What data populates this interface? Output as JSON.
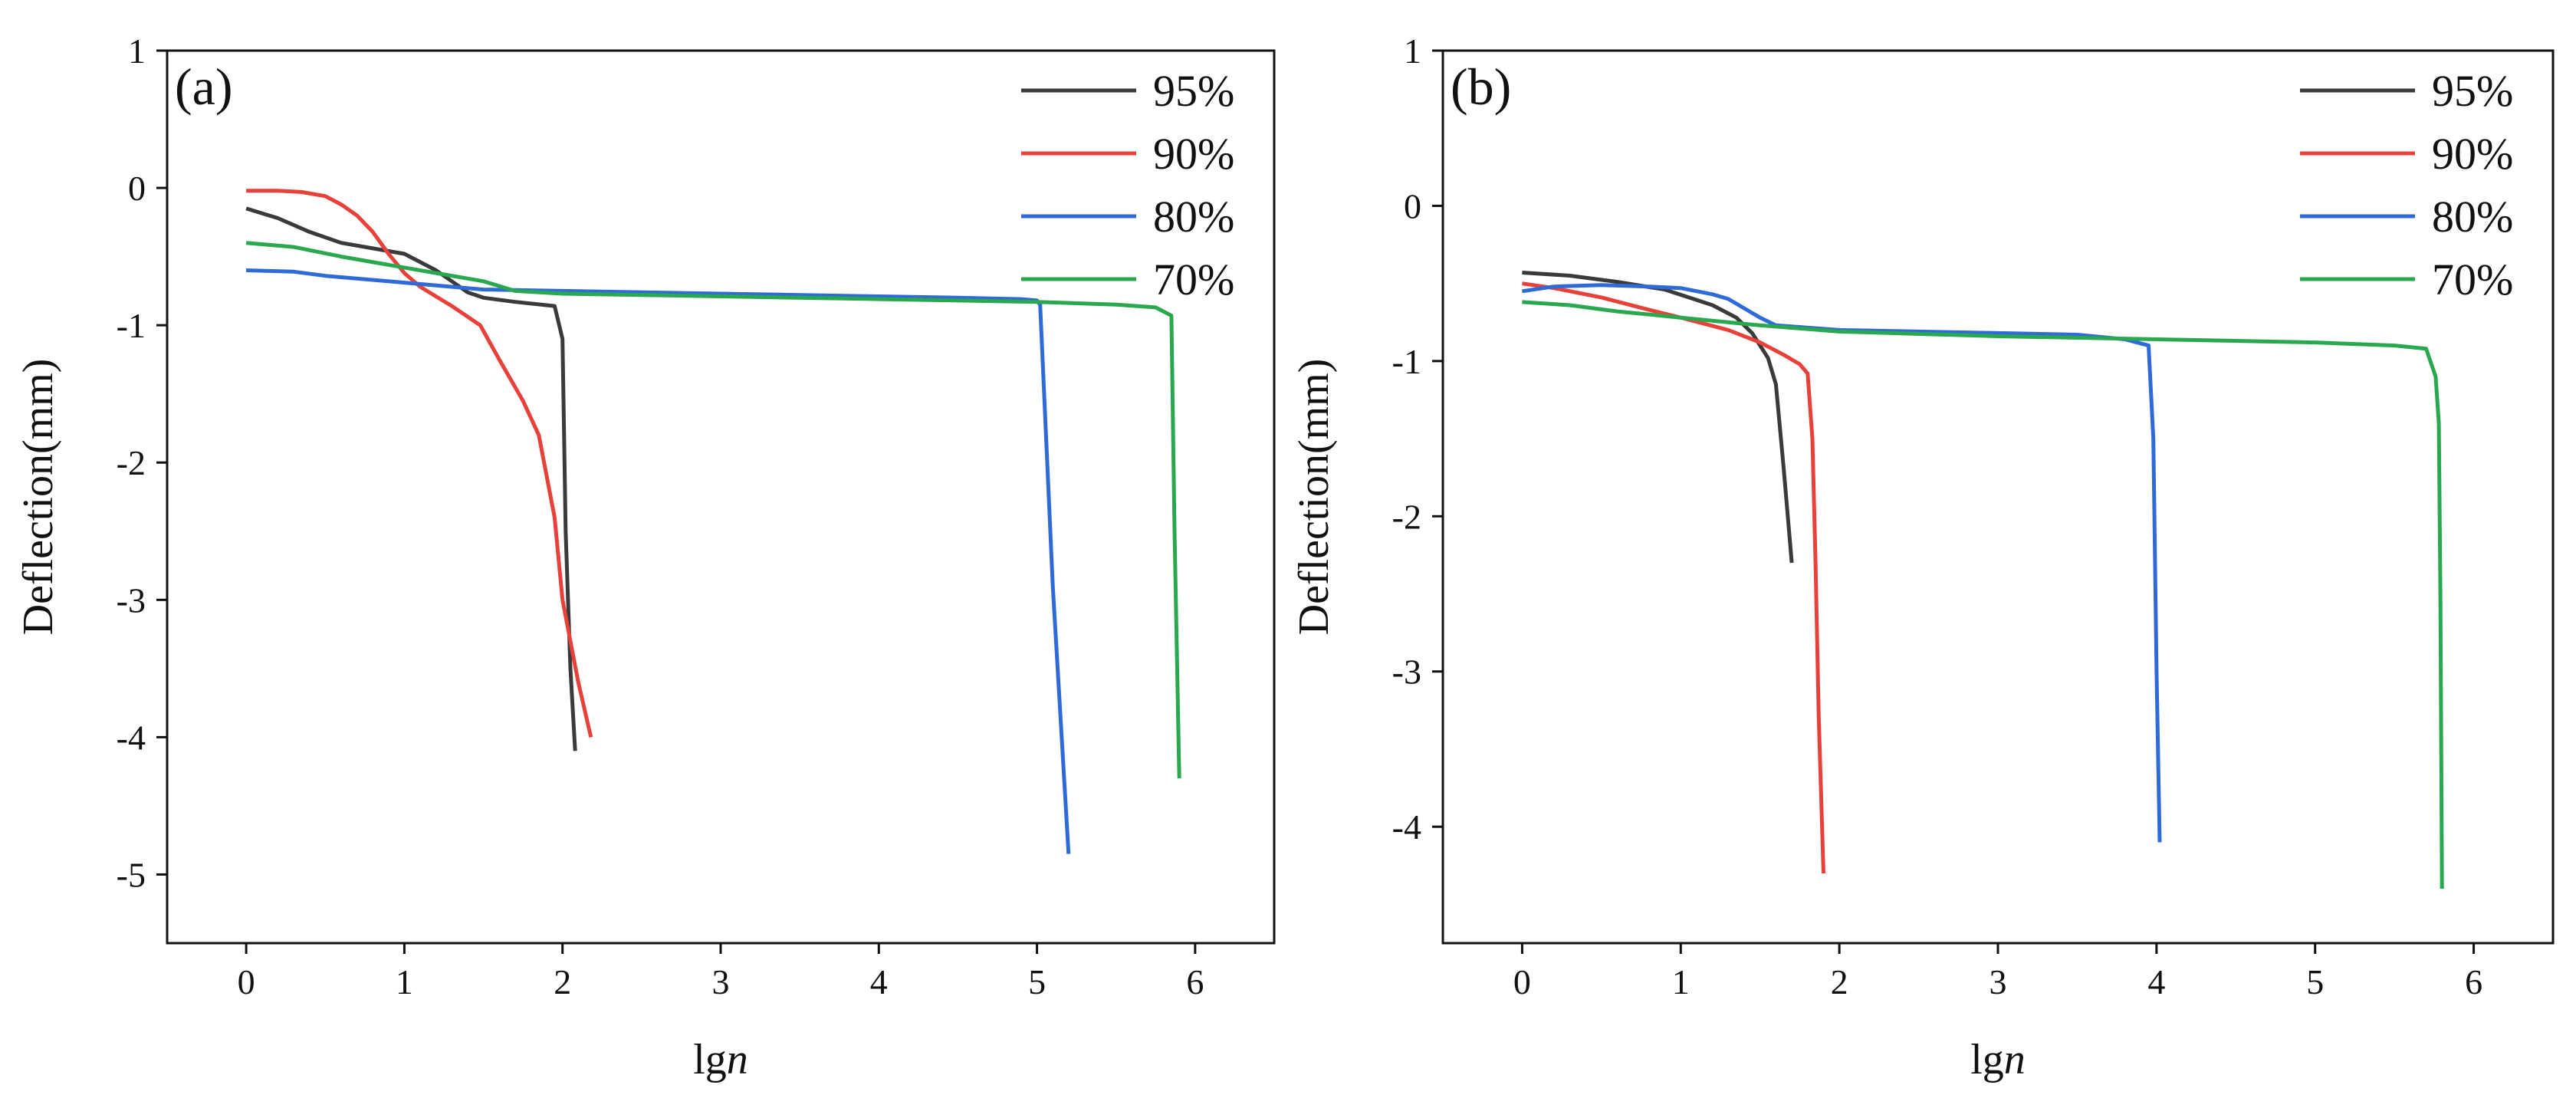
{
  "chart_data": [
    {
      "type": "line",
      "panel_label": "(a)",
      "xlabel_main": "lg",
      "xlabel_italic": "n",
      "ylabel": "Deflection(mm)",
      "xlim": [
        -0.5,
        6.5
      ],
      "ylim": [
        -5.5,
        1
      ],
      "xticks": [
        "0",
        "1",
        "2",
        "3",
        "4",
        "5",
        "6"
      ],
      "yticks": [
        "1",
        "0",
        "-1",
        "-2",
        "-3",
        "-4",
        "-5"
      ],
      "legend_position": "top-right",
      "series": [
        {
          "name": "95%",
          "color": "#3a3a3a",
          "points": [
            [
              0,
              -0.15
            ],
            [
              0.2,
              -0.22
            ],
            [
              0.4,
              -0.32
            ],
            [
              0.6,
              -0.4
            ],
            [
              0.8,
              -0.44
            ],
            [
              1.0,
              -0.48
            ],
            [
              1.2,
              -0.6
            ],
            [
              1.4,
              -0.76
            ],
            [
              1.5,
              -0.8
            ],
            [
              1.7,
              -0.83
            ],
            [
              1.95,
              -0.86
            ],
            [
              2.0,
              -1.1
            ],
            [
              2.02,
              -2.5
            ],
            [
              2.05,
              -3.5
            ],
            [
              2.08,
              -4.1
            ]
          ]
        },
        {
          "name": "90%",
          "color": "#e8413a",
          "points": [
            [
              0,
              -0.02
            ],
            [
              0.2,
              -0.02
            ],
            [
              0.35,
              -0.03
            ],
            [
              0.5,
              -0.06
            ],
            [
              0.6,
              -0.12
            ],
            [
              0.7,
              -0.2
            ],
            [
              0.8,
              -0.32
            ],
            [
              0.9,
              -0.48
            ],
            [
              1.0,
              -0.62
            ],
            [
              1.1,
              -0.72
            ],
            [
              1.3,
              -0.86
            ],
            [
              1.48,
              -1.0
            ],
            [
              1.6,
              -1.25
            ],
            [
              1.75,
              -1.55
            ],
            [
              1.85,
              -1.8
            ],
            [
              1.95,
              -2.4
            ],
            [
              2.0,
              -3.0
            ],
            [
              2.1,
              -3.6
            ],
            [
              2.18,
              -4.0
            ]
          ]
        },
        {
          "name": "80%",
          "color": "#2f6ad9",
          "points": [
            [
              0,
              -0.6
            ],
            [
              0.3,
              -0.61
            ],
            [
              0.5,
              -0.64
            ],
            [
              1.0,
              -0.69
            ],
            [
              1.5,
              -0.74
            ],
            [
              2.0,
              -0.75
            ],
            [
              3.0,
              -0.77
            ],
            [
              4.0,
              -0.79
            ],
            [
              4.5,
              -0.8
            ],
            [
              4.9,
              -0.81
            ],
            [
              5.0,
              -0.82
            ],
            [
              5.02,
              -0.85
            ],
            [
              5.1,
              -2.9
            ],
            [
              5.2,
              -4.85
            ]
          ]
        },
        {
          "name": "70%",
          "color": "#2aa84f",
          "points": [
            [
              0,
              -0.4
            ],
            [
              0.3,
              -0.43
            ],
            [
              0.6,
              -0.5
            ],
            [
              0.9,
              -0.56
            ],
            [
              1.2,
              -0.62
            ],
            [
              1.5,
              -0.68
            ],
            [
              1.7,
              -0.75
            ],
            [
              2.0,
              -0.77
            ],
            [
              3.0,
              -0.79
            ],
            [
              4.0,
              -0.81
            ],
            [
              5.0,
              -0.83
            ],
            [
              5.5,
              -0.85
            ],
            [
              5.75,
              -0.87
            ],
            [
              5.85,
              -0.93
            ],
            [
              5.87,
              -2.5
            ],
            [
              5.9,
              -4.3
            ]
          ]
        }
      ]
    },
    {
      "type": "line",
      "panel_label": "(b)",
      "xlabel_main": "lg",
      "xlabel_italic": "n",
      "ylabel": "Deflection(mm)",
      "xlim": [
        -0.5,
        6.5
      ],
      "ylim": [
        -4.75,
        1
      ],
      "xticks": [
        "0",
        "1",
        "2",
        "3",
        "4",
        "5",
        "6"
      ],
      "yticks": [
        "1",
        "0",
        "-1",
        "-2",
        "-3",
        "-4"
      ],
      "legend_position": "top-right",
      "series": [
        {
          "name": "95%",
          "color": "#3a3a3a",
          "points": [
            [
              0,
              -0.43
            ],
            [
              0.3,
              -0.45
            ],
            [
              0.6,
              -0.49
            ],
            [
              0.9,
              -0.54
            ],
            [
              1.2,
              -0.64
            ],
            [
              1.35,
              -0.72
            ],
            [
              1.45,
              -0.82
            ],
            [
              1.55,
              -0.98
            ],
            [
              1.6,
              -1.15
            ],
            [
              1.65,
              -1.7
            ],
            [
              1.7,
              -2.3
            ]
          ]
        },
        {
          "name": "90%",
          "color": "#e8413a",
          "points": [
            [
              0,
              -0.5
            ],
            [
              0.2,
              -0.53
            ],
            [
              0.5,
              -0.59
            ],
            [
              0.8,
              -0.67
            ],
            [
              1.0,
              -0.72
            ],
            [
              1.3,
              -0.8
            ],
            [
              1.5,
              -0.88
            ],
            [
              1.65,
              -0.96
            ],
            [
              1.75,
              -1.02
            ],
            [
              1.8,
              -1.08
            ],
            [
              1.83,
              -1.5
            ],
            [
              1.85,
              -2.3
            ],
            [
              1.87,
              -3.3
            ],
            [
              1.9,
              -4.3
            ]
          ]
        },
        {
          "name": "80%",
          "color": "#2f6ad9",
          "points": [
            [
              0,
              -0.55
            ],
            [
              0.2,
              -0.52
            ],
            [
              0.5,
              -0.51
            ],
            [
              0.8,
              -0.52
            ],
            [
              1.0,
              -0.53
            ],
            [
              1.2,
              -0.57
            ],
            [
              1.3,
              -0.6
            ],
            [
              1.5,
              -0.72
            ],
            [
              1.6,
              -0.77
            ],
            [
              2.0,
              -0.8
            ],
            [
              3.0,
              -0.82
            ],
            [
              3.5,
              -0.83
            ],
            [
              3.8,
              -0.86
            ],
            [
              3.95,
              -0.9
            ],
            [
              3.98,
              -1.5
            ],
            [
              4.0,
              -3.0
            ],
            [
              4.02,
              -4.1
            ]
          ]
        },
        {
          "name": "70%",
          "color": "#2aa84f",
          "points": [
            [
              0,
              -0.62
            ],
            [
              0.3,
              -0.64
            ],
            [
              0.6,
              -0.68
            ],
            [
              1.0,
              -0.72
            ],
            [
              1.5,
              -0.77
            ],
            [
              2.0,
              -0.81
            ],
            [
              3.0,
              -0.84
            ],
            [
              4.0,
              -0.86
            ],
            [
              5.0,
              -0.88
            ],
            [
              5.5,
              -0.9
            ],
            [
              5.7,
              -0.92
            ],
            [
              5.76,
              -1.1
            ],
            [
              5.78,
              -1.4
            ],
            [
              5.79,
              -2.5
            ],
            [
              5.8,
              -4.4
            ]
          ]
        }
      ]
    }
  ]
}
